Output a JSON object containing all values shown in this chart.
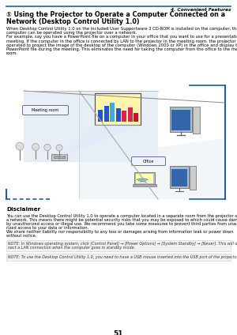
{
  "bg_color": "#ffffff",
  "page_number": "51",
  "header_section": "4. Convenient Features",
  "title_line1": "① Using the Projector to Operate a Computer Connected on a",
  "title_line2": "Network (Desktop Control Utility 1.0)",
  "body_lines": [
    "When Desktop Control Utility 1.0 on the included User Supportware 3 CD-ROM is installed on the computer, that",
    "computer can be operated using the projector over a network.",
    "For example, say you have a PowerPoint file on a computer in your office that you want to use for a presentation at a",
    "meeting. If the computer in the office is connected by LAN to the projector in the meeting room, the projector can be",
    "operated to project the image of the desktop of the computer (Windows 2000 or XP) in the office and display the",
    "PowerPoint file during the meeting. This eliminates the need for taking the computer from the office to the meeting",
    "room."
  ],
  "disclaimer_title": "Disclaimer",
  "disclaimer_lines": [
    "You can use the Desktop Control Utility 1.0 to operate a computer located in a separate room from the projector over",
    "a network. This means there might be potential security risks that you may be exposed to which could cause damage",
    "by unauthorized access or illegal use. We recommend you take some measures to prevent third parties from unautho-",
    "rized access to your data or information.",
    "We share neither liability nor responsibility to any loss or damages arising from information leak or power down",
    "without notice."
  ],
  "note1_lines": [
    "NOTE: In Windows operating system, click [Control Panel] → [Power Options] → [System Standby] → [Never]. This will discon-",
    "nect a LAN connection when the computer goes in standby mode."
  ],
  "note2_lines": [
    "NOTE: To use the Desktop Control Utility 1.0, you need to have a USB mouse inserted into the USB port of the projector."
  ],
  "blue_color": "#1a5fb4",
  "line_color": "#1a5fb4",
  "text_color": "#000000",
  "note_bg": "#f0f0f0"
}
